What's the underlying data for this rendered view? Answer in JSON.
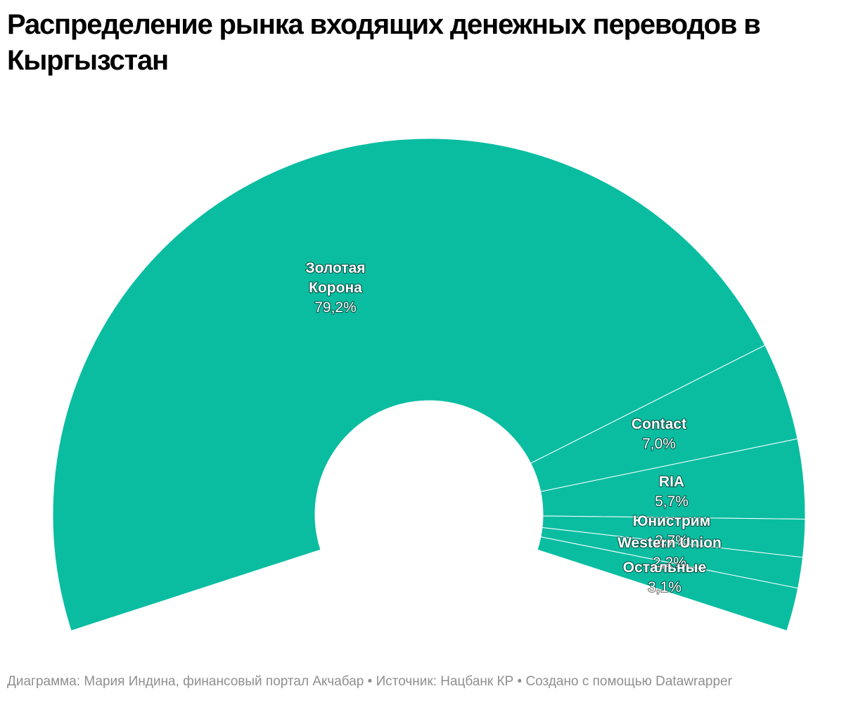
{
  "page": {
    "title": "Распределение рынка входящих денежных переводов в Кыргызстан",
    "footer": "Диаграмма: Мария Индина, финансовый портал Акчабар • Источник: Нацбанк КР • Создано с помощью Datawrapper"
  },
  "colors": {
    "slice": "#0abda1",
    "separator": "#ffffff"
  },
  "chart_data": {
    "type": "pie",
    "style": "donut-arc",
    "title": "Распределение рынка входящих денежных переводов в Кыргызстан",
    "slices": [
      {
        "name": "Золотая Корона",
        "name_lines": [
          "Золотая",
          "Корона"
        ],
        "value": 79.2,
        "value_label": "79,2%"
      },
      {
        "name": "Contact",
        "name_lines": [
          "Contact"
        ],
        "value": 7.0,
        "value_label": "7,0%"
      },
      {
        "name": "RIA",
        "name_lines": [
          "RIA"
        ],
        "value": 5.7,
        "value_label": "5,7%"
      },
      {
        "name": "Юнистрим",
        "name_lines": [
          "Юнистрим"
        ],
        "value": 2.7,
        "value_label": "2,7%"
      },
      {
        "name": "Western Union",
        "name_lines": [
          "Western Union"
        ],
        "value": 2.2,
        "value_label": "2,2%"
      },
      {
        "name": "Остальные",
        "name_lines": [
          "Остальные"
        ],
        "value": 3.1,
        "value_label": "3,1%"
      }
    ]
  }
}
